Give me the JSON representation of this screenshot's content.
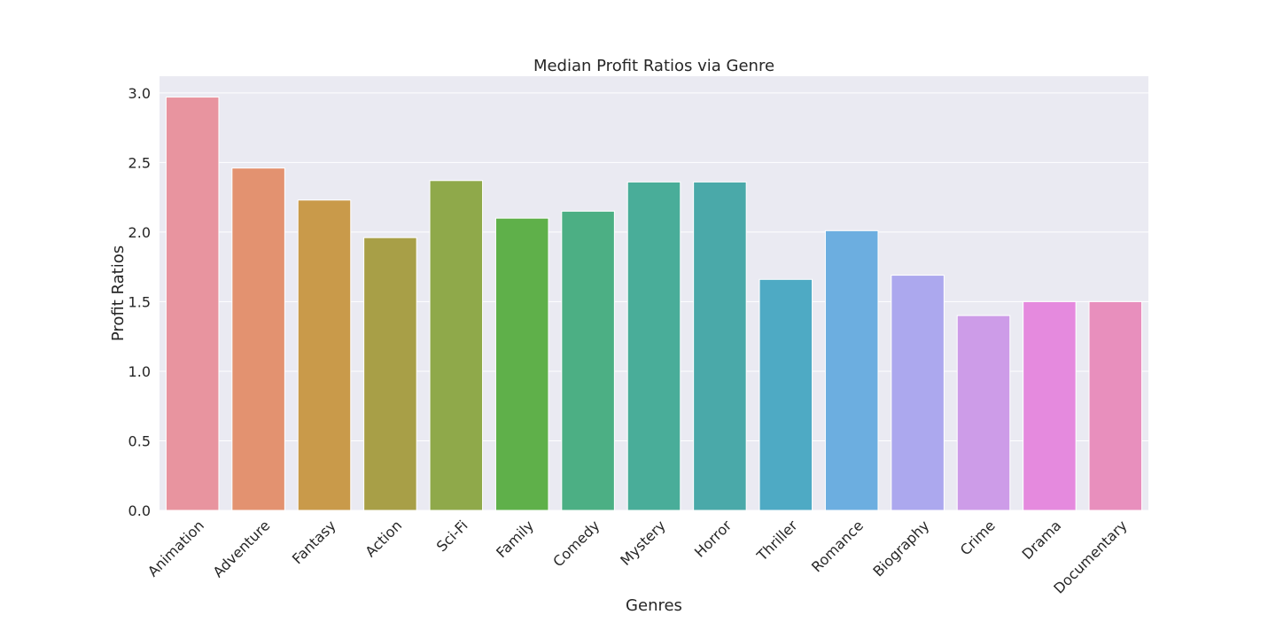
{
  "chart_data": {
    "type": "bar",
    "title": "Median Profit Ratios via Genre",
    "xlabel": "Genres",
    "ylabel": "Profit Ratios",
    "categories": [
      "Animation",
      "Adventure",
      "Fantasy",
      "Action",
      "Sci-Fi",
      "Family",
      "Comedy",
      "Mystery",
      "Horror",
      "Thriller",
      "Romance",
      "Biography",
      "Crime",
      "Drama",
      "Documentary"
    ],
    "values": [
      2.97,
      2.46,
      2.23,
      1.96,
      2.37,
      2.1,
      2.15,
      2.36,
      2.36,
      1.66,
      2.01,
      1.69,
      1.4,
      1.5,
      1.5
    ],
    "colors": [
      "#e8949f",
      "#e39270",
      "#c99a4a",
      "#a89f47",
      "#8fa94a",
      "#5fb04a",
      "#4caf84",
      "#49ad99",
      "#4aa9a9",
      "#4eaac4",
      "#6caee0",
      "#aca8ee",
      "#cd9ce8",
      "#e58ade",
      "#e88fbd"
    ],
    "ylim": [
      0,
      3.12
    ],
    "yticks": [
      0.0,
      0.5,
      1.0,
      1.5,
      2.0,
      2.5,
      3.0
    ],
    "ytick_labels": [
      "0.0",
      "0.5",
      "1.0",
      "1.5",
      "2.0",
      "2.5",
      "3.0"
    ],
    "grid": true,
    "plot_background": "#eaeaf2",
    "grid_color": "#ffffff"
  }
}
